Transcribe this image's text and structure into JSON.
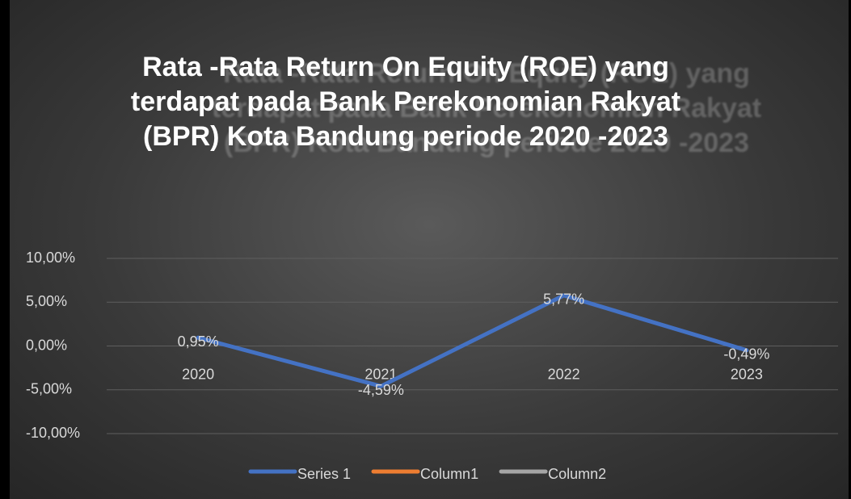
{
  "chart_data": {
    "type": "line",
    "title": "Rata -Rata Return On Equity (ROE) yang terdapat pada Bank Perekonomian Rakyat (BPR) Kota Bandung periode 2020 -2023",
    "categories": [
      "2020",
      "2021",
      "2022",
      "2023"
    ],
    "series": [
      {
        "name": "Series 1",
        "color": "#4472c4",
        "values": [
          0.95,
          -4.59,
          5.77,
          -0.49
        ],
        "value_labels": [
          "0,95%",
          "-4,59%",
          "5,77%",
          "-0,49%"
        ]
      },
      {
        "name": "Column1",
        "color": "#ed7d31",
        "values": [
          null,
          null,
          null,
          null
        ]
      },
      {
        "name": "Column2",
        "color": "#a5a5a5",
        "values": [
          null,
          null,
          null,
          null
        ]
      }
    ],
    "ylim": [
      -10,
      10
    ],
    "yticks": [
      {
        "value": -10,
        "label": "-10,00%"
      },
      {
        "value": -5,
        "label": "-5,00%"
      },
      {
        "value": 0,
        "label": "0,00%"
      },
      {
        "value": 5,
        "label": "5,00%"
      },
      {
        "value": 10,
        "label": "10,00%"
      }
    ],
    "grid": true
  }
}
